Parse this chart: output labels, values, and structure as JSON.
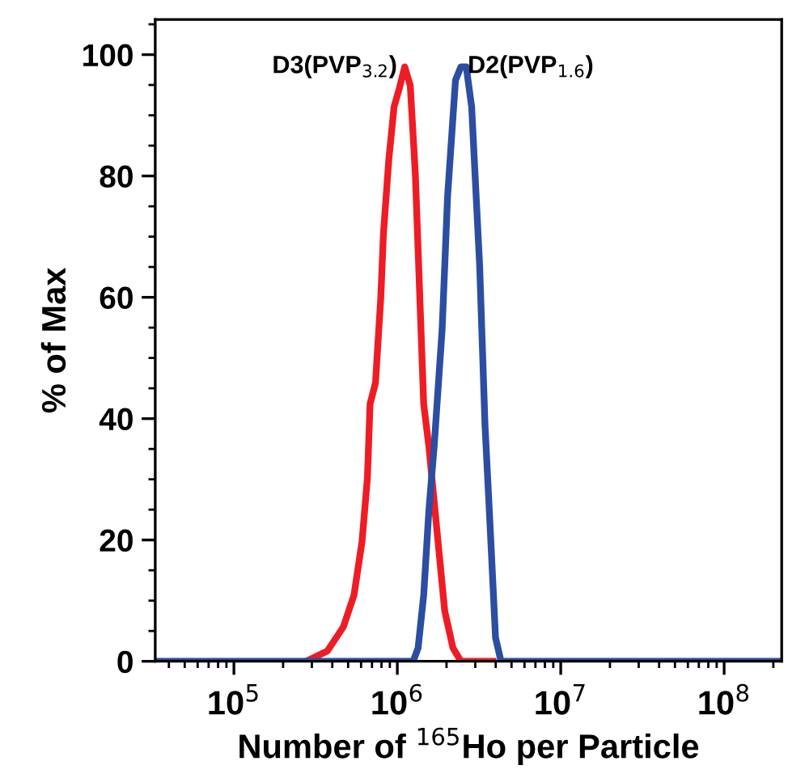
{
  "chart_data": {
    "type": "line",
    "xlabel": "Number of $^{165}$Ho per Particle",
    "ylabel": "% of Max",
    "log": "x",
    "grid": false,
    "legend": false,
    "marker": "none",
    "line_style": "solid",
    "xlim": [
      33000,
      225000000
    ],
    "ylim": [
      0,
      105.8
    ],
    "xticks": [
      {
        "value": 100000,
        "label": "10$^{5}$"
      },
      {
        "value": 1000000,
        "label": "10$^{6}$"
      },
      {
        "value": 10000000,
        "label": "10$^{7}$"
      },
      {
        "value": 100000000,
        "label": "10$^{8}$"
      }
    ],
    "yticks": [
      0,
      20,
      40,
      60,
      80,
      100
    ],
    "series": [
      {
        "name": "D3(PVP$_{3.2}$)",
        "color": "#ee1c25",
        "x": [
          276000,
          373000,
          468000,
          543000,
          608000,
          656000,
          681000,
          735000,
          792000,
          822000,
          887000,
          955000,
          1030000,
          1110000,
          1200000,
          1290000,
          1450000,
          1560000,
          1750000,
          1950000,
          2190000,
          2450000,
          3850000
        ],
        "values": [
          0,
          1.7,
          5.7,
          10.9,
          19.7,
          30.2,
          42.4,
          45.9,
          59.9,
          70.4,
          82.7,
          91.4,
          94.5,
          98,
          94.9,
          80.1,
          42.4,
          35.4,
          21.4,
          8.3,
          2.2,
          0,
          0
        ]
      },
      {
        "name": "D2(PVP$_{1.6}$)",
        "color": "#2b4ea2",
        "x": [
          33000,
          1250000,
          1340000,
          1450000,
          1560000,
          1680000,
          1880000,
          2030000,
          2270000,
          2450000,
          2640000,
          2850000,
          3190000,
          3440000,
          3710000,
          3990000,
          4310000,
          225000000
        ],
        "values": [
          0,
          0,
          2.2,
          10.9,
          24.9,
          35.4,
          54.7,
          76.6,
          95.8,
          98,
          98,
          91.4,
          65.2,
          38.9,
          21.4,
          3.9,
          0,
          0
        ]
      }
    ]
  }
}
